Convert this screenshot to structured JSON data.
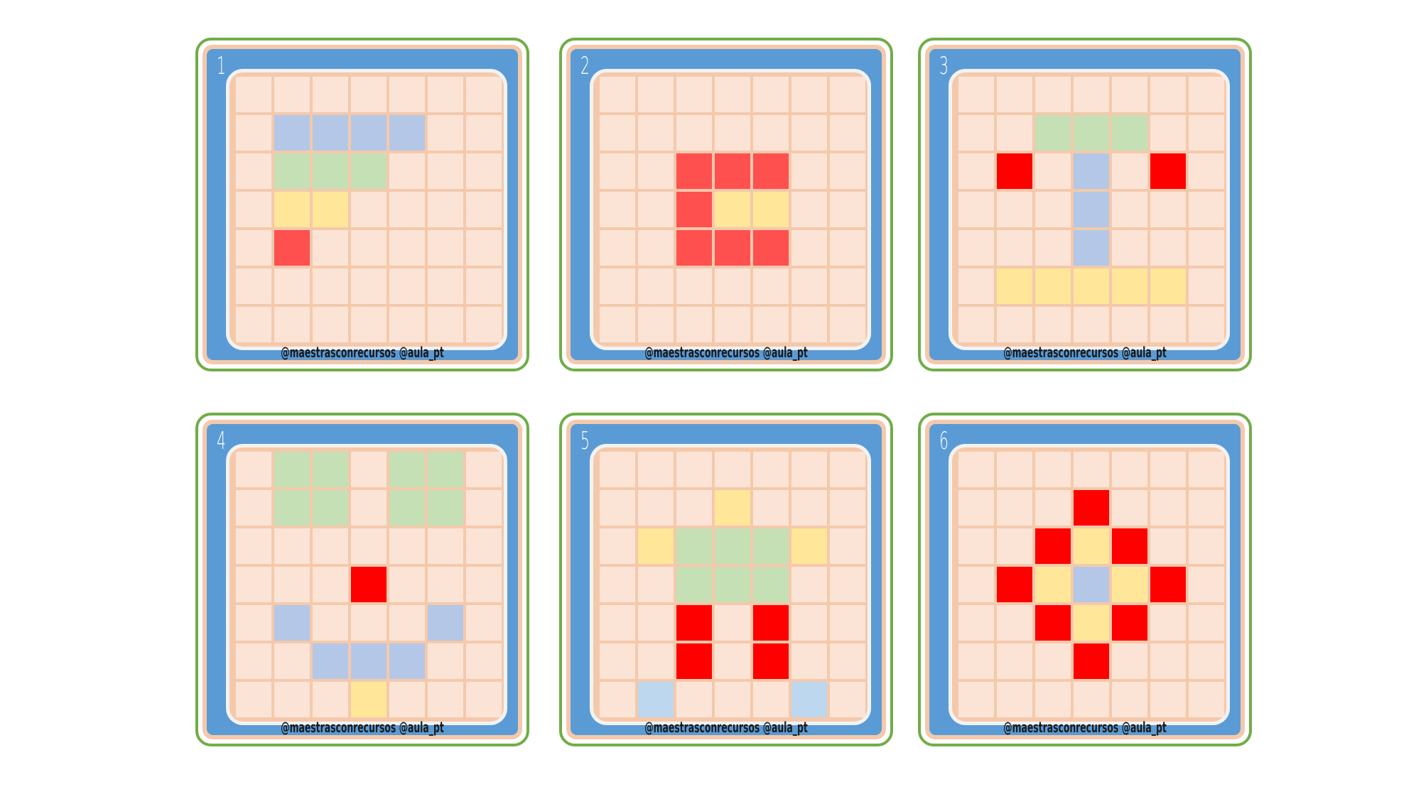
{
  "colors": {
    "empty": "#fbe4d6",
    "red": "#ff5050",
    "bright_red": "#ff0000",
    "yellow": "#ffe699",
    "green": "#c5e0b4",
    "blue": "#b4c7e7",
    "light_blue": "#bdd7ee"
  },
  "cards": [
    {
      "number": "1",
      "credit": "@maestrasconrecursos  @aula_pt",
      "filled": [
        {
          "row": 1,
          "col": 1,
          "color": "blue"
        },
        {
          "row": 1,
          "col": 2,
          "color": "blue"
        },
        {
          "row": 1,
          "col": 3,
          "color": "blue"
        },
        {
          "row": 1,
          "col": 4,
          "color": "blue"
        },
        {
          "row": 2,
          "col": 1,
          "color": "green"
        },
        {
          "row": 2,
          "col": 2,
          "color": "green"
        },
        {
          "row": 2,
          "col": 3,
          "color": "green"
        },
        {
          "row": 3,
          "col": 1,
          "color": "yellow"
        },
        {
          "row": 3,
          "col": 2,
          "color": "yellow"
        },
        {
          "row": 4,
          "col": 1,
          "color": "red"
        }
      ]
    },
    {
      "number": "2",
      "credit": "@maestrasconrecursos  @aula_pt",
      "filled": [
        {
          "row": 2,
          "col": 2,
          "color": "red"
        },
        {
          "row": 2,
          "col": 3,
          "color": "red"
        },
        {
          "row": 2,
          "col": 4,
          "color": "red"
        },
        {
          "row": 3,
          "col": 2,
          "color": "red"
        },
        {
          "row": 3,
          "col": 3,
          "color": "yellow"
        },
        {
          "row": 3,
          "col": 4,
          "color": "yellow"
        },
        {
          "row": 4,
          "col": 2,
          "color": "red"
        },
        {
          "row": 4,
          "col": 3,
          "color": "red"
        },
        {
          "row": 4,
          "col": 4,
          "color": "red"
        }
      ]
    },
    {
      "number": "3",
      "credit": "@maestrasconrecursos  @aula_pt",
      "filled": [
        {
          "row": 1,
          "col": 2,
          "color": "green"
        },
        {
          "row": 1,
          "col": 3,
          "color": "green"
        },
        {
          "row": 1,
          "col": 4,
          "color": "green"
        },
        {
          "row": 2,
          "col": 1,
          "color": "bright_red"
        },
        {
          "row": 2,
          "col": 3,
          "color": "blue"
        },
        {
          "row": 2,
          "col": 5,
          "color": "bright_red"
        },
        {
          "row": 3,
          "col": 3,
          "color": "blue"
        },
        {
          "row": 4,
          "col": 3,
          "color": "blue"
        },
        {
          "row": 5,
          "col": 1,
          "color": "yellow"
        },
        {
          "row": 5,
          "col": 2,
          "color": "yellow"
        },
        {
          "row": 5,
          "col": 3,
          "color": "yellow"
        },
        {
          "row": 5,
          "col": 4,
          "color": "yellow"
        },
        {
          "row": 5,
          "col": 5,
          "color": "yellow"
        }
      ]
    },
    {
      "number": "4",
      "credit": "@maestrasconrecursos  @aula_pt",
      "filled": [
        {
          "row": 0,
          "col": 1,
          "color": "green"
        },
        {
          "row": 0,
          "col": 2,
          "color": "green"
        },
        {
          "row": 0,
          "col": 4,
          "color": "green"
        },
        {
          "row": 0,
          "col": 5,
          "color": "green"
        },
        {
          "row": 1,
          "col": 1,
          "color": "green"
        },
        {
          "row": 1,
          "col": 2,
          "color": "green"
        },
        {
          "row": 1,
          "col": 4,
          "color": "green"
        },
        {
          "row": 1,
          "col": 5,
          "color": "green"
        },
        {
          "row": 3,
          "col": 3,
          "color": "bright_red"
        },
        {
          "row": 4,
          "col": 1,
          "color": "blue"
        },
        {
          "row": 4,
          "col": 5,
          "color": "blue"
        },
        {
          "row": 5,
          "col": 2,
          "color": "blue"
        },
        {
          "row": 5,
          "col": 3,
          "color": "blue"
        },
        {
          "row": 5,
          "col": 4,
          "color": "blue"
        },
        {
          "row": 6,
          "col": 3,
          "color": "yellow"
        }
      ]
    },
    {
      "number": "5",
      "credit": "@maestrasconrecursos  @aula_pt",
      "filled": [
        {
          "row": 1,
          "col": 3,
          "color": "yellow"
        },
        {
          "row": 2,
          "col": 1,
          "color": "yellow"
        },
        {
          "row": 2,
          "col": 2,
          "color": "green"
        },
        {
          "row": 2,
          "col": 3,
          "color": "green"
        },
        {
          "row": 2,
          "col": 4,
          "color": "green"
        },
        {
          "row": 2,
          "col": 5,
          "color": "yellow"
        },
        {
          "row": 3,
          "col": 2,
          "color": "green"
        },
        {
          "row": 3,
          "col": 3,
          "color": "green"
        },
        {
          "row": 3,
          "col": 4,
          "color": "green"
        },
        {
          "row": 4,
          "col": 2,
          "color": "bright_red"
        },
        {
          "row": 4,
          "col": 4,
          "color": "bright_red"
        },
        {
          "row": 5,
          "col": 2,
          "color": "bright_red"
        },
        {
          "row": 5,
          "col": 4,
          "color": "bright_red"
        },
        {
          "row": 6,
          "col": 1,
          "color": "light_blue"
        },
        {
          "row": 6,
          "col": 5,
          "color": "light_blue"
        }
      ]
    },
    {
      "number": "6",
      "credit": "@maestrasconrecursos  @aula_pt",
      "filled": [
        {
          "row": 1,
          "col": 3,
          "color": "bright_red"
        },
        {
          "row": 2,
          "col": 2,
          "color": "bright_red"
        },
        {
          "row": 2,
          "col": 3,
          "color": "yellow"
        },
        {
          "row": 2,
          "col": 4,
          "color": "bright_red"
        },
        {
          "row": 3,
          "col": 1,
          "color": "bright_red"
        },
        {
          "row": 3,
          "col": 2,
          "color": "yellow"
        },
        {
          "row": 3,
          "col": 3,
          "color": "blue"
        },
        {
          "row": 3,
          "col": 4,
          "color": "yellow"
        },
        {
          "row": 3,
          "col": 5,
          "color": "bright_red"
        },
        {
          "row": 4,
          "col": 2,
          "color": "bright_red"
        },
        {
          "row": 4,
          "col": 3,
          "color": "yellow"
        },
        {
          "row": 4,
          "col": 4,
          "color": "bright_red"
        },
        {
          "row": 5,
          "col": 3,
          "color": "bright_red"
        }
      ]
    }
  ]
}
